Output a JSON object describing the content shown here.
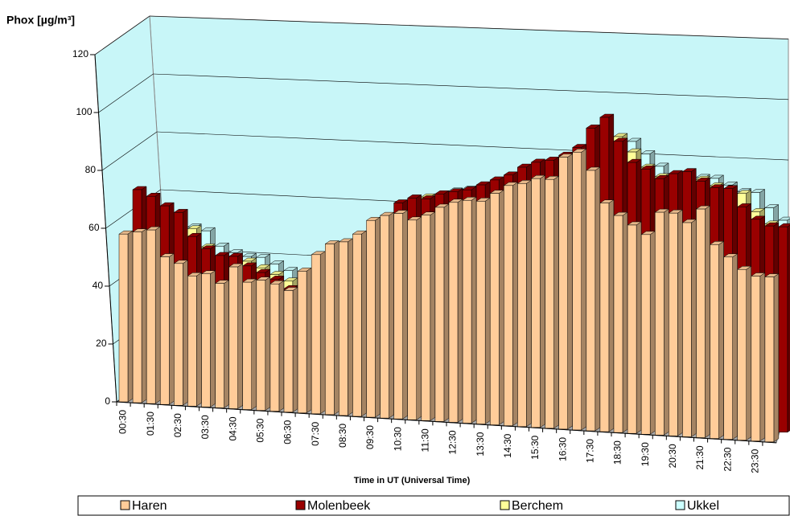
{
  "chart_data": {
    "type": "bar3d",
    "y_label": "Phox  [µg/m³]",
    "x_label": "Time in UT (Universal Time)",
    "categories": [
      "00:30",
      null,
      "01:30",
      null,
      "02:30",
      null,
      "03:30",
      null,
      "04:30",
      null,
      "05:30",
      null,
      "06:30",
      null,
      "07:30",
      null,
      "08:30",
      null,
      "09:30",
      null,
      "10:30",
      null,
      "11:30",
      null,
      "12:30",
      null,
      "13:30",
      null,
      "14:30",
      null,
      "15:30",
      null,
      "16:30",
      null,
      "17:30",
      null,
      "18:30",
      null,
      "19:30",
      null,
      "20:30",
      null,
      "21:30",
      null,
      "22:30",
      null,
      "23:30",
      null
    ],
    "series": [
      {
        "name": "Haren",
        "color": "#ffcc99",
        "values": [
          58,
          59,
          60,
          51,
          49,
          45,
          46,
          43,
          49,
          44,
          45,
          44,
          42,
          49,
          55,
          59,
          60,
          63,
          68,
          70,
          71,
          69,
          71,
          74,
          76,
          77,
          77,
          80,
          83,
          84,
          86,
          86,
          94,
          96,
          90,
          79,
          75,
          72,
          69,
          77,
          77,
          74,
          79,
          67,
          63,
          59,
          57,
          57
        ]
      },
      {
        "name": "Molenbeek",
        "color": "#990000",
        "values": [
          70,
          68,
          65,
          63,
          55,
          51,
          49,
          49,
          46,
          44,
          42,
          39,
          37,
          41,
          44,
          49,
          52,
          54,
          62,
          71,
          73,
          73,
          75,
          76,
          77,
          79,
          81,
          83,
          86,
          88,
          89,
          91,
          94,
          101,
          105,
          97,
          90,
          88,
          85,
          87,
          88,
          85,
          83,
          83,
          77,
          73,
          71,
          71
        ]
      },
      {
        "name": "Berchem",
        "color": "#ffff99",
        "values": [
          60,
          58,
          56,
          54,
          48,
          45,
          44,
          44,
          42,
          40,
          38,
          37,
          36,
          38,
          40,
          44,
          47,
          50,
          58,
          66,
          70,
          71,
          72,
          73,
          73,
          74,
          76,
          77,
          80,
          83,
          84,
          86,
          88,
          92,
          95,
          90,
          85,
          82,
          80,
          82,
          82,
          80,
          78,
          78,
          72,
          68,
          66,
          66
        ]
      },
      {
        "name": "Ukkel",
        "color": "#ccffff",
        "values": [
          55,
          53,
          51,
          50,
          45,
          43,
          42,
          42,
          40,
          38,
          37,
          36,
          35,
          37,
          39,
          42,
          45,
          48,
          55,
          63,
          67,
          69,
          70,
          71,
          71,
          72,
          74,
          75,
          78,
          81,
          82,
          84,
          85,
          88,
          90,
          86,
          82,
          79,
          77,
          79,
          79,
          77,
          75,
          75,
          70,
          66,
          64,
          64
        ]
      }
    ],
    "ylim": [
      0,
      120
    ],
    "yticks": [
      0,
      20,
      40,
      60,
      80,
      100,
      120
    ],
    "grid": true
  }
}
